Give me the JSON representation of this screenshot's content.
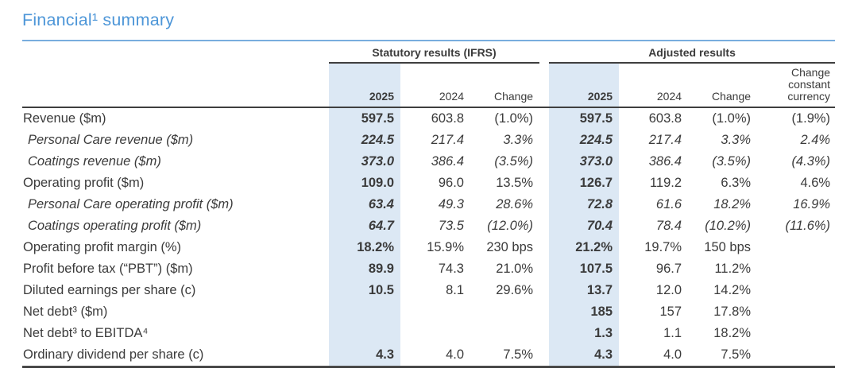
{
  "page": {
    "title": "Financial¹ summary"
  },
  "colors": {
    "accent_blue": "#4d96d8",
    "rule_blue": "#79adde",
    "highlight_column": "#dce8f4",
    "text": "#3b3b3b",
    "border_dark": "#3f3f3f"
  },
  "table": {
    "groups": [
      {
        "label": "Statutory results (IFRS)",
        "colspan": 3
      },
      {
        "label": "Adjusted results",
        "colspan": 4
      }
    ],
    "column_headers": [
      "2025",
      "2024",
      "Change",
      "2025",
      "2024",
      "Change",
      "Change constant currency"
    ],
    "rows": [
      {
        "label": "Revenue ($m)",
        "italic": false,
        "values": [
          "597.5",
          "603.8",
          "(1.0%)",
          "597.5",
          "603.8",
          "(1.0%)",
          "(1.9%)"
        ]
      },
      {
        "label": "Personal Care revenue ($m)",
        "italic": true,
        "values": [
          "224.5",
          "217.4",
          "3.3%",
          "224.5",
          "217.4",
          "3.3%",
          "2.4%"
        ]
      },
      {
        "label": "Coatings revenue ($m)",
        "italic": true,
        "values": [
          "373.0",
          "386.4",
          "(3.5%)",
          "373.0",
          "386.4",
          "(3.5%)",
          "(4.3%)"
        ]
      },
      {
        "label": "Operating profit ($m)",
        "italic": false,
        "values": [
          "109.0",
          "96.0",
          "13.5%",
          "126.7",
          "119.2",
          "6.3%",
          "4.6%"
        ]
      },
      {
        "label": "Personal Care operating profit ($m)",
        "italic": true,
        "values": [
          "63.4",
          "49.3",
          "28.6%",
          "72.8",
          "61.6",
          "18.2%",
          "16.9%"
        ]
      },
      {
        "label": "Coatings operating profit ($m)",
        "italic": true,
        "values": [
          "64.7",
          "73.5",
          "(12.0%)",
          "70.4",
          "78.4",
          "(10.2%)",
          "(11.6%)"
        ]
      },
      {
        "label": "Operating profit margin (%)",
        "italic": false,
        "values": [
          "18.2%",
          "15.9%",
          "230 bps",
          "21.2%",
          "19.7%",
          "150 bps",
          ""
        ]
      },
      {
        "label": "Profit before tax (“PBT”) ($m)",
        "italic": false,
        "values": [
          "89.9",
          "74.3",
          "21.0%",
          "107.5",
          "96.7",
          "11.2%",
          ""
        ]
      },
      {
        "label": "Diluted earnings per share (c)",
        "italic": false,
        "values": [
          "10.5",
          "8.1",
          "29.6%",
          "13.7",
          "12.0",
          "14.2%",
          ""
        ]
      },
      {
        "label": "Net debt³ ($m)",
        "italic": false,
        "values": [
          "",
          "",
          "",
          "185",
          "157",
          "17.8%",
          ""
        ]
      },
      {
        "label": "Net debt³ to EBITDA⁴",
        "italic": false,
        "values": [
          "",
          "",
          "",
          "1.3",
          "1.1",
          "18.2%",
          ""
        ]
      },
      {
        "label": "Ordinary dividend per share (c)",
        "italic": false,
        "values": [
          "4.3",
          "4.0",
          "7.5%",
          "4.3",
          "4.0",
          "7.5%",
          ""
        ]
      }
    ]
  }
}
